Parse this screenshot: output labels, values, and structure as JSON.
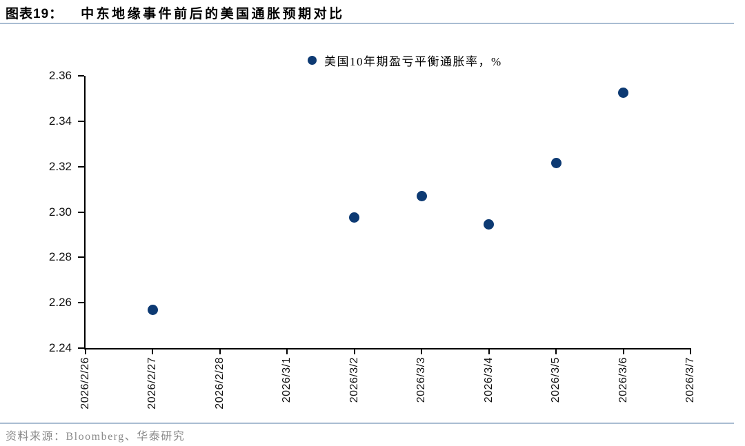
{
  "header": {
    "figure_label": "图表19：",
    "title": "中东地缘事件前后的美国通胀预期对比"
  },
  "legend": {
    "marker_icon": "filled-circle-icon",
    "label": "美国10年期盈亏平衡通胀率，%"
  },
  "footer": {
    "source": "资料来源：Bloomberg、华泰研究"
  },
  "colors": {
    "point": "#0d3a73",
    "axis": "#000000",
    "rule": "#a9bdd2",
    "source_text": "#8a8a8a"
  },
  "chart_data": {
    "type": "scatter",
    "title": "中东地缘事件前后的美国通胀预期对比",
    "xlabel": "",
    "ylabel": "",
    "grid": false,
    "legend_position": "top-center",
    "legend_entries": [
      "美国10年期盈亏平衡通胀率，%"
    ],
    "categories": [
      "2026/2/26",
      "2026/2/27",
      "2026/2/28",
      "2026/3/1",
      "2026/3/2",
      "2026/3/3",
      "2026/3/4",
      "2026/3/5",
      "2026/3/6",
      "2026/3/7"
    ],
    "ylim": [
      2.24,
      2.36
    ],
    "ytick_labels": [
      "2.24",
      "2.26",
      "2.28",
      "2.30",
      "2.32",
      "2.34",
      "2.36"
    ],
    "series": [
      {
        "name": "美国10年期盈亏平衡通胀率，%",
        "points": [
          {
            "x": "2026/2/27",
            "y": 2.257
          },
          {
            "x": "2026/3/2",
            "y": 2.2975
          },
          {
            "x": "2026/3/3",
            "y": 2.307
          },
          {
            "x": "2026/3/4",
            "y": 2.2945
          },
          {
            "x": "2026/3/5",
            "y": 2.3215
          },
          {
            "x": "2026/3/6",
            "y": 2.3525
          }
        ]
      }
    ]
  }
}
